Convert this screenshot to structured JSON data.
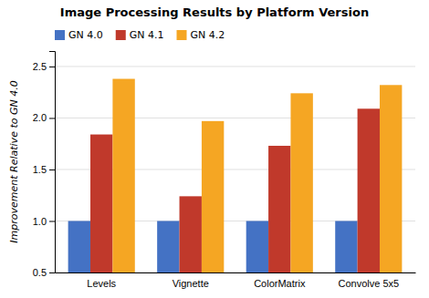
{
  "chart_data": {
    "type": "bar",
    "title": "Image Processing Results by Platform Version",
    "ylabel": "Improvement Relative to GN 4.0",
    "categories": [
      "Levels",
      "Vignette",
      "ColorMatrix",
      "Convolve 5x5"
    ],
    "series": [
      {
        "name": "GN 4.0",
        "color": "#4472C4",
        "values": [
          1.0,
          1.0,
          1.0,
          1.0
        ]
      },
      {
        "name": "GN 4.1",
        "color": "#C0392B",
        "values": [
          1.84,
          1.24,
          1.73,
          2.09
        ]
      },
      {
        "name": "GN 4.2",
        "color": "#F5A623",
        "values": [
          2.38,
          1.97,
          2.24,
          2.32
        ]
      }
    ],
    "ylim": [
      0.5,
      2.65
    ],
    "yticks": [
      0.5,
      {
        "value": 1.0,
        "label": "1.0"
      },
      1.5,
      {
        "value": 2.0,
        "label": "2.0"
      },
      2.5
    ],
    "grid": true,
    "legend": "upper left"
  }
}
